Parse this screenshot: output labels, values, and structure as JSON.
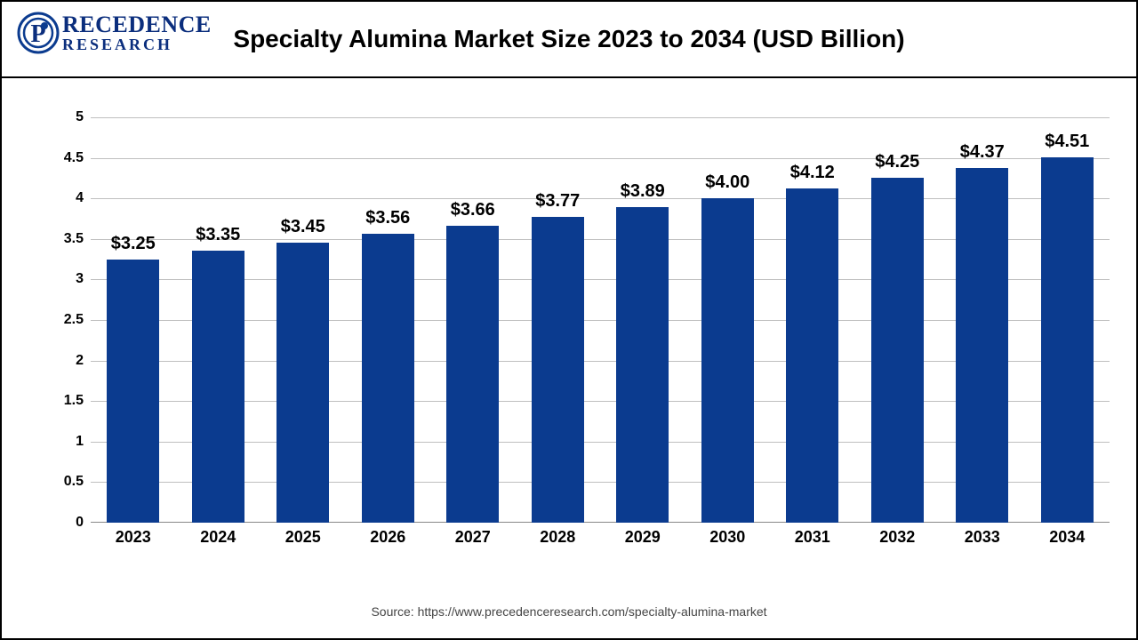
{
  "logo": {
    "brand_line1": "RECEDENCE",
    "brand_line2": "RESEARCH"
  },
  "chart": {
    "type": "bar",
    "title": "Specialty Alumina Market Size 2023 to 2034 (USD Billion)",
    "categories": [
      "2023",
      "2024",
      "2025",
      "2026",
      "2027",
      "2028",
      "2029",
      "2030",
      "2031",
      "2032",
      "2033",
      "2034"
    ],
    "values": [
      3.25,
      3.35,
      3.45,
      3.56,
      3.66,
      3.77,
      3.89,
      4.0,
      4.12,
      4.25,
      4.37,
      4.51
    ],
    "value_labels": [
      "$3.25",
      "$3.35",
      "$3.45",
      "$3.56",
      "$3.66",
      "$3.77",
      "$3.89",
      "$4.00",
      "$4.12",
      "$4.25",
      "$4.37",
      "$4.51"
    ],
    "bar_color": "#0b3b8f",
    "ylim": [
      0,
      5
    ],
    "ytick_step": 0.5,
    "yticks": [
      "0",
      "0.5",
      "1",
      "1.5",
      "2",
      "2.5",
      "3",
      "3.5",
      "4",
      "4.5",
      "5"
    ],
    "grid_color": "#bfbfbf",
    "background_color": "#ffffff",
    "title_fontsize": 28,
    "data_label_fontsize": 20,
    "axis_label_fontsize": 18,
    "bar_width": 0.62
  },
  "source": "Source: https://www.precedenceresearch.com/specialty-alumina-market"
}
